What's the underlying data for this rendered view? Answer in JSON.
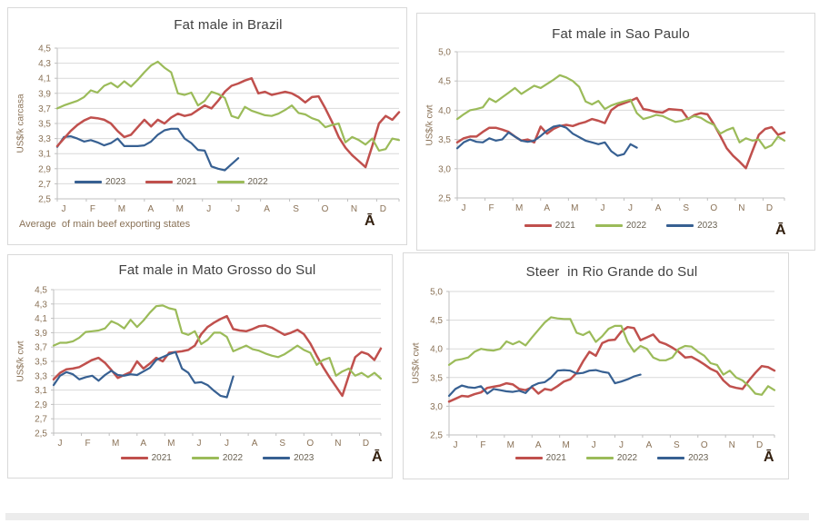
{
  "page": {
    "background": "#FFFFFF",
    "bottom_strip_color": "#ECECEC"
  },
  "colors": {
    "red_2021": "#C0504D",
    "green_2022": "#9BBB59",
    "blue_2023": "#376092",
    "grid": "#D9D9D9",
    "axis": "#BFBFBF",
    "tick_text": "#8A7257",
    "legend_text": "#6A6253",
    "title_text": "#404040",
    "mark_text": "#33200F",
    "panel_border": "#D9D9D9"
  },
  "x_labels": [
    "J",
    "F",
    "M",
    "A",
    "M",
    "J",
    "J",
    "A",
    "S",
    "O",
    "N",
    "D"
  ],
  "chart_data": [
    {
      "type": "line",
      "title": "Fat male in Brazil",
      "ylabel": "US$/k carcasa",
      "footnote": "Average  of main beef exporting states",
      "mark": "Ā",
      "ylim": [
        2.5,
        4.5
      ],
      "yticks": [
        "4,5",
        "4,3",
        "4,1",
        "3,9",
        "3,7",
        "3,5",
        "3,3",
        "3,1",
        "2,9",
        "2,7",
        "2,5"
      ],
      "x_unit": "weeks",
      "legend_position": "inside-bottom-left",
      "legend": [
        "2023",
        "2021",
        "2022"
      ],
      "series": [
        {
          "name": "2023",
          "color": "#376092",
          "values": [
            3.19,
            3.32,
            3.33,
            3.3,
            3.26,
            3.28,
            3.25,
            3.21,
            3.24,
            3.3,
            3.2,
            3.2,
            3.2,
            3.21,
            3.26,
            3.35,
            3.41,
            3.43,
            3.43,
            3.3,
            3.24,
            3.15,
            3.14,
            2.93,
            2.9,
            2.88,
            2.96,
            3.04
          ]
        },
        {
          "name": "2021",
          "color": "#C0504D",
          "values": [
            3.2,
            3.3,
            3.4,
            3.48,
            3.54,
            3.58,
            3.57,
            3.55,
            3.5,
            3.4,
            3.32,
            3.35,
            3.45,
            3.55,
            3.46,
            3.55,
            3.5,
            3.58,
            3.63,
            3.6,
            3.62,
            3.68,
            3.74,
            3.7,
            3.8,
            3.92,
            4.0,
            4.03,
            4.07,
            4.1,
            3.9,
            3.92,
            3.88,
            3.9,
            3.92,
            3.9,
            3.85,
            3.78,
            3.85,
            3.86,
            3.7,
            3.52,
            3.32,
            3.18,
            3.08,
            3.0,
            2.92,
            3.2,
            3.5,
            3.6,
            3.55,
            3.65
          ]
        },
        {
          "name": "2022",
          "color": "#9BBB59",
          "values": [
            3.7,
            3.74,
            3.77,
            3.8,
            3.85,
            3.94,
            3.91,
            4.0,
            4.04,
            3.98,
            4.06,
            3.99,
            4.08,
            4.18,
            4.27,
            4.32,
            4.24,
            4.18,
            3.9,
            3.88,
            3.91,
            3.74,
            3.8,
            3.92,
            3.89,
            3.84,
            3.6,
            3.57,
            3.72,
            3.67,
            3.64,
            3.61,
            3.6,
            3.63,
            3.68,
            3.74,
            3.64,
            3.62,
            3.57,
            3.54,
            3.45,
            3.48,
            3.5,
            3.25,
            3.32,
            3.28,
            3.22,
            3.3,
            3.14,
            3.16,
            3.3,
            3.28
          ]
        }
      ]
    },
    {
      "type": "line",
      "title": "Fat male in Sao Paulo",
      "ylabel": "US$/k cwt",
      "mark": "Ā",
      "ylim": [
        2.5,
        5.0
      ],
      "yticks": [
        "5,0",
        "4,5",
        "4,0",
        "3,5",
        "3,0",
        "2,5"
      ],
      "x_unit": "weeks",
      "legend_position": "below",
      "legend": [
        "2021",
        "2022",
        "2023"
      ],
      "series": [
        {
          "name": "2021",
          "color": "#C0504D",
          "values": [
            3.45,
            3.52,
            3.55,
            3.55,
            3.63,
            3.7,
            3.7,
            3.67,
            3.63,
            3.55,
            3.48,
            3.5,
            3.45,
            3.72,
            3.6,
            3.68,
            3.73,
            3.75,
            3.73,
            3.77,
            3.8,
            3.85,
            3.82,
            3.78,
            4.0,
            4.08,
            4.12,
            4.16,
            4.21,
            4.02,
            4.0,
            3.97,
            3.96,
            4.02,
            4.01,
            4.0,
            3.85,
            3.92,
            3.95,
            3.93,
            3.76,
            3.56,
            3.35,
            3.22,
            3.12,
            3.01,
            3.3,
            3.58,
            3.68,
            3.71,
            3.58,
            3.62
          ]
        },
        {
          "name": "2022",
          "color": "#9BBB59",
          "values": [
            3.85,
            3.93,
            4.0,
            4.02,
            4.05,
            4.2,
            4.14,
            4.22,
            4.3,
            4.38,
            4.28,
            4.35,
            4.42,
            4.38,
            4.45,
            4.52,
            4.6,
            4.56,
            4.5,
            4.4,
            4.15,
            4.1,
            4.16,
            4.02,
            4.08,
            4.12,
            4.15,
            4.18,
            3.95,
            3.85,
            3.88,
            3.92,
            3.9,
            3.85,
            3.8,
            3.82,
            3.86,
            3.9,
            3.87,
            3.8,
            3.75,
            3.6,
            3.66,
            3.7,
            3.45,
            3.52,
            3.48,
            3.5,
            3.35,
            3.4,
            3.55,
            3.48
          ]
        },
        {
          "name": "2023",
          "color": "#376092",
          "values": [
            3.35,
            3.45,
            3.5,
            3.46,
            3.45,
            3.52,
            3.48,
            3.5,
            3.62,
            3.55,
            3.48,
            3.46,
            3.48,
            3.56,
            3.65,
            3.72,
            3.74,
            3.7,
            3.6,
            3.54,
            3.48,
            3.45,
            3.42,
            3.45,
            3.3,
            3.22,
            3.25,
            3.42,
            3.36
          ]
        }
      ]
    },
    {
      "type": "line",
      "title": "Fat male in Mato Grosso do Sul",
      "ylabel": "US$/k cwt",
      "mark": "Ā",
      "ylim": [
        2.5,
        4.5
      ],
      "yticks": [
        "4,5",
        "4,3",
        "4,1",
        "3,9",
        "3,7",
        "3,5",
        "3,3",
        "3,1",
        "2,9",
        "2,7",
        "2,5"
      ],
      "x_unit": "weeks",
      "legend_position": "below",
      "legend": [
        "2021",
        "2022",
        "2023"
      ],
      "series": [
        {
          "name": "2021",
          "color": "#C0504D",
          "values": [
            3.25,
            3.34,
            3.39,
            3.4,
            3.42,
            3.47,
            3.52,
            3.55,
            3.48,
            3.38,
            3.27,
            3.31,
            3.35,
            3.5,
            3.4,
            3.47,
            3.55,
            3.5,
            3.62,
            3.63,
            3.64,
            3.66,
            3.72,
            3.88,
            3.98,
            4.04,
            4.09,
            4.13,
            3.95,
            3.93,
            3.92,
            3.95,
            3.99,
            4.0,
            3.97,
            3.92,
            3.87,
            3.9,
            3.94,
            3.88,
            3.75,
            3.58,
            3.42,
            3.28,
            3.15,
            3.02,
            3.3,
            3.56,
            3.63,
            3.6,
            3.52,
            3.68
          ]
        },
        {
          "name": "2022",
          "color": "#9BBB59",
          "values": [
            3.72,
            3.76,
            3.76,
            3.78,
            3.83,
            3.91,
            3.92,
            3.93,
            3.96,
            4.06,
            4.02,
            3.96,
            4.08,
            3.98,
            4.07,
            4.18,
            4.27,
            4.28,
            4.24,
            4.22,
            3.9,
            3.87,
            3.92,
            3.74,
            3.8,
            3.9,
            3.9,
            3.84,
            3.64,
            3.68,
            3.72,
            3.67,
            3.65,
            3.61,
            3.58,
            3.56,
            3.6,
            3.66,
            3.72,
            3.66,
            3.62,
            3.45,
            3.52,
            3.55,
            3.3,
            3.36,
            3.4,
            3.3,
            3.34,
            3.28,
            3.34,
            3.26
          ]
        },
        {
          "name": "2023",
          "color": "#376092",
          "values": [
            3.17,
            3.3,
            3.35,
            3.32,
            3.25,
            3.28,
            3.3,
            3.23,
            3.31,
            3.37,
            3.31,
            3.3,
            3.32,
            3.31,
            3.36,
            3.41,
            3.52,
            3.56,
            3.6,
            3.63,
            3.4,
            3.34,
            3.2,
            3.21,
            3.17,
            3.09,
            3.02,
            3.0,
            3.29
          ]
        }
      ]
    },
    {
      "type": "line",
      "title": "Steer  in Rio Grande do Sul",
      "ylabel": "US$/k cwt",
      "mark": "Ā",
      "ylim": [
        2.5,
        5.0
      ],
      "yticks": [
        "5,0",
        "4,5",
        "4,0",
        "3,5",
        "3,0",
        "2,5"
      ],
      "x_unit": "weeks",
      "legend_position": "below",
      "legend": [
        "2021",
        "2022",
        "2023"
      ],
      "series": [
        {
          "name": "2021",
          "color": "#C0504D",
          "values": [
            3.08,
            3.13,
            3.18,
            3.17,
            3.21,
            3.24,
            3.32,
            3.34,
            3.36,
            3.4,
            3.38,
            3.3,
            3.28,
            3.33,
            3.22,
            3.3,
            3.28,
            3.35,
            3.43,
            3.47,
            3.58,
            3.78,
            3.95,
            3.88,
            4.1,
            4.15,
            4.16,
            4.3,
            4.38,
            4.36,
            4.15,
            4.2,
            4.25,
            4.12,
            4.08,
            4.02,
            3.95,
            3.85,
            3.86,
            3.8,
            3.73,
            3.65,
            3.6,
            3.45,
            3.35,
            3.32,
            3.3,
            3.45,
            3.58,
            3.7,
            3.68,
            3.62
          ]
        },
        {
          "name": "2022",
          "color": "#9BBB59",
          "values": [
            3.72,
            3.8,
            3.82,
            3.85,
            3.95,
            4.0,
            3.98,
            3.97,
            4.0,
            4.13,
            4.08,
            4.13,
            4.06,
            4.2,
            4.33,
            4.46,
            4.55,
            4.53,
            4.52,
            4.52,
            4.28,
            4.24,
            4.3,
            4.12,
            4.22,
            4.35,
            4.4,
            4.4,
            4.12,
            3.95,
            4.05,
            4.0,
            3.85,
            3.8,
            3.8,
            3.85,
            4.0,
            4.05,
            4.04,
            3.95,
            3.88,
            3.75,
            3.72,
            3.55,
            3.62,
            3.5,
            3.45,
            3.35,
            3.22,
            3.2,
            3.35,
            3.28
          ]
        },
        {
          "name": "2023",
          "color": "#376092",
          "values": [
            3.18,
            3.3,
            3.36,
            3.33,
            3.32,
            3.35,
            3.22,
            3.3,
            3.28,
            3.26,
            3.25,
            3.27,
            3.23,
            3.35,
            3.4,
            3.42,
            3.5,
            3.62,
            3.63,
            3.62,
            3.57,
            3.58,
            3.62,
            3.63,
            3.6,
            3.58,
            3.4,
            3.43,
            3.47,
            3.52,
            3.55
          ]
        }
      ]
    }
  ]
}
